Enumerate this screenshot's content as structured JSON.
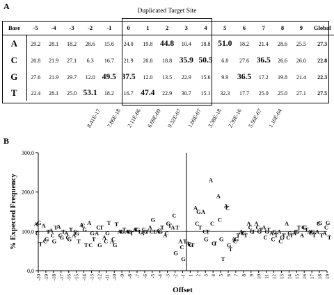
{
  "panelA": {
    "label": "A",
    "title": "Duplicated Target Site",
    "header": [
      "Base",
      "-5",
      "-4",
      "-3",
      "-2",
      "-1",
      "0",
      "1",
      "2",
      "3",
      "4",
      "5",
      "6",
      "7",
      "8",
      "9",
      "Global"
    ],
    "rows": [
      {
        "base": "A",
        "values": [
          "29.2",
          "28.1",
          "18.2",
          "28.6",
          "15.6",
          "24.0",
          "19.8",
          "44.8",
          "10.4",
          "18.8",
          "51.0",
          "18.2",
          "21.4",
          "28.6",
          "25.5"
        ],
        "global": "27.3"
      },
      {
        "base": "C",
        "values": [
          "20.8",
          "21.9",
          "27.1",
          "6.3",
          "16.7",
          "21.9",
          "20.8",
          "18.8",
          "35.9",
          "50.5",
          "6.8",
          "27.6",
          "36.5",
          "26.6",
          "26.0"
        ],
        "global": "22.8"
      },
      {
        "base": "G",
        "values": [
          "27.6",
          "21.9",
          "29.7",
          "12.0",
          "49.5",
          "37.5",
          "12.0",
          "13.5",
          "22.9",
          "15.6",
          "9.9",
          "36.5",
          "17.2",
          "19.8",
          "21.4"
        ],
        "global": "22.3"
      },
      {
        "base": "T",
        "values": [
          "22.4",
          "28.1",
          "25.0",
          "53.1",
          "18.2",
          "16.7",
          "47.4",
          "22.9",
          "30.7",
          "15.1",
          "32.3",
          "17.7",
          "25.0",
          "25.0",
          "27.1"
        ],
        "global": "27.5"
      }
    ],
    "bold_cells": [
      [
        0,
        7
      ],
      [
        0,
        10
      ],
      [
        1,
        8
      ],
      [
        1,
        9
      ],
      [
        1,
        12
      ],
      [
        2,
        4
      ],
      [
        2,
        5
      ],
      [
        2,
        11
      ],
      [
        3,
        3
      ],
      [
        3,
        6
      ]
    ],
    "pvalues": [
      "8.41E-17",
      "7.86E-18",
      "2.11E-06",
      "6.69E-09",
      "9.32E-07",
      "1.00E-07",
      "3.38E-18",
      "2.39E-16",
      "5.56E-07",
      "1.10E-04"
    ],
    "pvalue_columns": [
      "-2",
      "-1",
      "0",
      "1",
      "2",
      "3",
      "4",
      "5",
      "6",
      "7"
    ]
  },
  "panelB": {
    "label": "B"
  },
  "chart_data": {
    "type": "scatter",
    "xlabel": "Offset",
    "ylabel": "% Expected Frequency",
    "ylim": [
      0,
      300
    ],
    "yticks": [
      "0,0",
      "100,0",
      "200,0",
      "300,0"
    ],
    "xlim": [
      -20,
      19
    ],
    "x_categories": [
      "-20",
      "-19",
      "-18",
      "-17",
      "-16",
      "-15",
      "-14",
      "-13",
      "-12",
      "-11",
      "-10",
      "-9",
      "-8",
      "-7",
      "-6",
      "-5",
      "-4",
      "-3",
      "-2",
      "-1",
      "1",
      "2",
      "3",
      "4",
      "5",
      "6",
      "7",
      "8",
      "9",
      "10",
      "11",
      "12",
      "13",
      "14",
      "15",
      "16",
      "17",
      "18",
      "19"
    ],
    "reference_line": 100,
    "series": [
      {
        "name": "A",
        "values": [
          118,
          115,
          102,
          112,
          95,
          90,
          117,
          122,
          95,
          85,
          75,
          100,
          100,
          105,
          95,
          110,
          100,
          90,
          110,
          75,
          70,
          160,
          150,
          230,
          190,
          165,
          80,
          100,
          120,
          120,
          110,
          95,
          100,
          120,
          95,
          90,
          100,
          100,
          95
        ]
      },
      {
        "name": "C",
        "values": [
          95,
          75,
          90,
          90,
          85,
          100,
          115,
          65,
          110,
          75,
          80,
          100,
          100,
          105,
          105,
          100,
          102,
          95,
          140,
          60,
          68,
          120,
          100,
          120,
          130,
          160,
          75,
          95,
          110,
          110,
          85,
          80,
          75,
          85,
          100,
          110,
          95,
          120,
          110
        ]
      },
      {
        "name": "G",
        "values": [
          122,
          80,
          75,
          85,
          80,
          95,
          105,
          95,
          65,
          95,
          65,
          100,
          100,
          105,
          100,
          130,
          100,
          120,
          45,
          30,
          65,
          150,
          80,
          70,
          80,
          65,
          80,
          95,
          100,
          100,
          100,
          100,
          85,
          95,
          100,
          110,
          100,
          122,
          122
        ]
      },
      {
        "name": "T",
        "values": [
          68,
          100,
          110,
          100,
          105,
          75,
          65,
          80,
          110,
          122,
          118,
          105,
          95,
          100,
          100,
          100,
          110,
          115,
          110,
          75,
          65,
          110,
          100,
          70,
          30,
          55,
          90,
          90,
          100,
          105,
          105,
          90,
          90,
          90,
          110,
          105,
          90,
          90,
          85
        ]
      }
    ],
    "marker_series_labels": [
      "A",
      "C",
      "G",
      "T"
    ]
  }
}
